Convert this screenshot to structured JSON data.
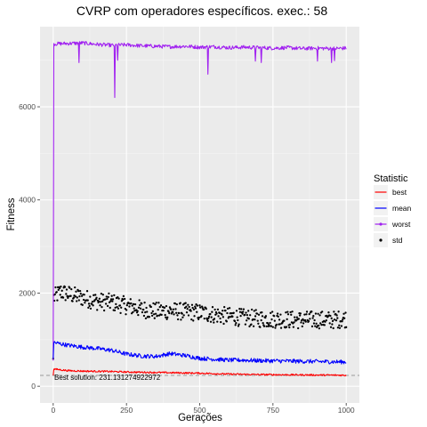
{
  "chart_data": {
    "type": "line",
    "title": "CVRP com operadores específicos. exec.: 58",
    "xlabel": "Gerações",
    "ylabel": "Fitness",
    "xlim": [
      0,
      1000
    ],
    "ylim": [
      0,
      7400
    ],
    "x_ticks": [
      0,
      250,
      500,
      750,
      1000
    ],
    "x_tick_labels": [
      "0",
      "250",
      "500",
      "750",
      "1000"
    ],
    "y_ticks": [
      0,
      2000,
      4000,
      6000
    ],
    "y_tick_labels": [
      "0",
      "2000",
      "4000",
      "6000"
    ],
    "grid": true,
    "legend": {
      "title": "Statistic",
      "position": "right",
      "entries": [
        {
          "label": "best",
          "color": "#ff0000",
          "kind": "line"
        },
        {
          "label": "mean",
          "color": "#0000ff",
          "kind": "line"
        },
        {
          "label": "worst",
          "color": "#a020f0",
          "kind": "line+point"
        },
        {
          "label": "std",
          "color": "#000000",
          "kind": "point"
        }
      ]
    },
    "series": [
      {
        "name": "best",
        "color": "#ff0000",
        "x": [
          0,
          1,
          50,
          100,
          150,
          200,
          250,
          300,
          350,
          400,
          450,
          500,
          550,
          600,
          650,
          700,
          750,
          800,
          850,
          900,
          950,
          1000
        ],
        "y": [
          230,
          370,
          335,
          325,
          320,
          315,
          305,
          300,
          295,
          290,
          285,
          280,
          270,
          260,
          255,
          250,
          248,
          245,
          243,
          240,
          238,
          235
        ]
      },
      {
        "name": "mean",
        "color": "#0000ff",
        "x": [
          0,
          1,
          50,
          100,
          150,
          200,
          250,
          300,
          350,
          400,
          450,
          500,
          550,
          600,
          650,
          700,
          750,
          800,
          850,
          900,
          950,
          1000
        ],
        "y": [
          590,
          940,
          880,
          840,
          810,
          770,
          690,
          650,
          640,
          700,
          660,
          600,
          580,
          560,
          560,
          550,
          545,
          540,
          535,
          530,
          525,
          520
        ]
      },
      {
        "name": "worst",
        "color": "#a020f0",
        "x": [
          0,
          2,
          50,
          100,
          150,
          200,
          250,
          300,
          350,
          400,
          450,
          500,
          550,
          600,
          650,
          700,
          750,
          800,
          850,
          900,
          950,
          1000
        ],
        "y": [
          550,
          7350,
          7360,
          7370,
          7340,
          7320,
          7330,
          7310,
          7300,
          7290,
          7300,
          7280,
          7290,
          7270,
          7280,
          7270,
          7260,
          7270,
          7250,
          7260,
          7250,
          7260
        ],
        "dips": [
          {
            "x": 88,
            "y": 6950
          },
          {
            "x": 210,
            "y": 6200
          },
          {
            "x": 220,
            "y": 7000
          },
          {
            "x": 528,
            "y": 6700
          },
          {
            "x": 690,
            "y": 6980
          },
          {
            "x": 710,
            "y": 6950
          },
          {
            "x": 725,
            "y": 6920
          },
          {
            "x": 902,
            "y": 6980
          },
          {
            "x": 950,
            "y": 6950
          },
          {
            "x": 960,
            "y": 6990
          }
        ]
      },
      {
        "name": "std",
        "color": "#000000",
        "x": [
          0,
          2,
          25,
          50,
          100,
          150,
          200,
          250,
          300,
          350,
          400,
          450,
          500,
          550,
          600,
          650,
          700,
          750,
          800,
          850,
          900,
          950,
          1000
        ],
        "y": [
          590,
          1900,
          2030,
          1980,
          1900,
          1820,
          1800,
          1730,
          1660,
          1610,
          1620,
          1600,
          1580,
          1540,
          1500,
          1470,
          1450,
          1440,
          1430,
          1420,
          1430,
          1420,
          1450
        ],
        "spread": 190
      }
    ],
    "annotations": [
      {
        "text": "Best solution: 231.131274922972",
        "x": 0,
        "y": 231.131274922972,
        "hline": true,
        "hline_style": "dashed"
      }
    ]
  }
}
